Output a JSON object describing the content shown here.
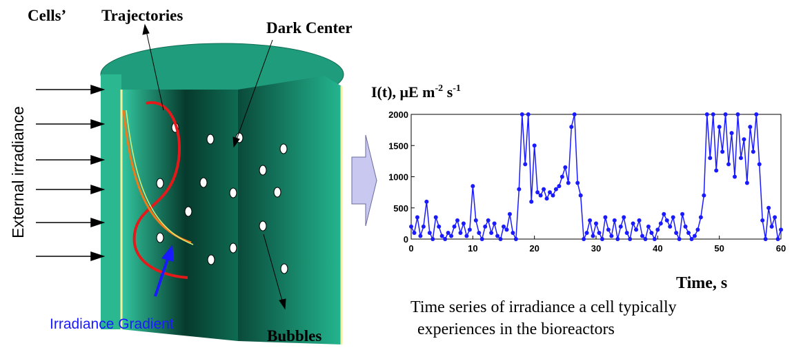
{
  "diagram": {
    "labels": {
      "cells": "Cells’",
      "trajectories": "Trajectories",
      "dark_center": "Dark Center",
      "external_irradiance": "External irradiance",
      "irradiance_gradient": "Irradiance Gradient",
      "bubbles": "Bubbles"
    },
    "caption": [
      "Time series of irradiance a cell typically",
      "experiences in the bioreactors"
    ]
  },
  "chart_data": {
    "type": "line",
    "y_label": [
      "I(t), μE m",
      "-2",
      " s",
      "-1"
    ],
    "x_label": "Time, s",
    "xlim": [
      0,
      60
    ],
    "xticks": [
      0,
      10,
      20,
      30,
      40,
      50,
      60
    ],
    "ylim": [
      0,
      2000
    ],
    "yticks": [
      0,
      500,
      1000,
      1500,
      2000
    ],
    "series": [
      {
        "color": "#1a1aff",
        "x": [
          0,
          0.5,
          1,
          1.5,
          2,
          2.5,
          3,
          3.5,
          4,
          4.5,
          5,
          5.5,
          6,
          6.5,
          7,
          7.5,
          8,
          8.5,
          9,
          9.5,
          10,
          10.5,
          11,
          11.5,
          12,
          12.5,
          13,
          13.5,
          14,
          14.5,
          15,
          15.5,
          16,
          16.5,
          17,
          17.5,
          18,
          18.5,
          19,
          19.5,
          20,
          20.5,
          21,
          21.5,
          22,
          22.5,
          23,
          23.5,
          24,
          24.5,
          25,
          25.5,
          26,
          26.5,
          27,
          27.5,
          28,
          28.5,
          29,
          29.5,
          30,
          30.5,
          31,
          31.5,
          32,
          32.5,
          33,
          33.5,
          34,
          34.5,
          35,
          35.5,
          36,
          36.5,
          37,
          37.5,
          38,
          38.5,
          39,
          39.5,
          40,
          40.5,
          41,
          41.5,
          42,
          42.5,
          43,
          43.5,
          44,
          44.5,
          45,
          45.5,
          46,
          46.5,
          47,
          47.5,
          48,
          48.5,
          49,
          49.5,
          50,
          50.5,
          51,
          51.5,
          52,
          52.5,
          53,
          53.5,
          54,
          54.5,
          55,
          55.5,
          56,
          56.5,
          57,
          57.5,
          58,
          58.5,
          59,
          59.5,
          60
        ],
        "values": [
          200,
          100,
          350,
          50,
          200,
          600,
          100,
          0,
          350,
          200,
          50,
          0,
          100,
          50,
          200,
          300,
          100,
          250,
          50,
          150,
          850,
          300,
          100,
          0,
          200,
          300,
          100,
          250,
          50,
          0,
          200,
          150,
          400,
          100,
          0,
          800,
          2000,
          1200,
          2000,
          600,
          1500,
          750,
          700,
          800,
          650,
          750,
          700,
          800,
          850,
          1000,
          1150,
          900,
          1800,
          2000,
          900,
          700,
          0,
          100,
          300,
          50,
          250,
          100,
          0,
          350,
          150,
          50,
          300,
          0,
          200,
          350,
          100,
          0,
          250,
          150,
          300,
          50,
          0,
          200,
          100,
          0,
          150,
          250,
          400,
          300,
          200,
          350,
          100,
          0,
          400,
          200,
          100,
          0,
          50,
          150,
          350,
          700,
          2000,
          1300,
          2000,
          1100,
          1800,
          1400,
          2000,
          1200,
          1700,
          1000,
          2000,
          1300,
          1600,
          900,
          1800,
          1400,
          2000,
          1200,
          300,
          0,
          500,
          200,
          350,
          0,
          150
        ]
      }
    ]
  }
}
